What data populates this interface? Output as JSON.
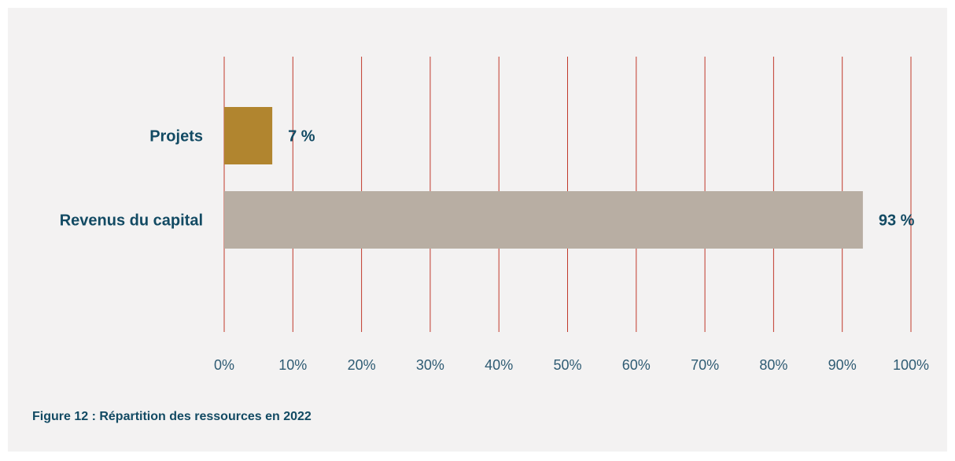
{
  "caption": "Figure 12 : Répartition des ressources en 2022",
  "chart_data": {
    "type": "bar",
    "orientation": "horizontal",
    "categories": [
      "Projets",
      "Revenus du capital"
    ],
    "values": [
      7,
      93
    ],
    "data_labels": [
      "7 %",
      "93 %"
    ],
    "bar_colors": [
      "#b1852f",
      "#b8aea3"
    ],
    "xlim": [
      0,
      100
    ],
    "x_ticks": [
      0,
      10,
      20,
      30,
      40,
      50,
      60,
      70,
      80,
      90,
      100
    ],
    "x_tick_labels": [
      "0%",
      "10%",
      "20%",
      "30%",
      "40%",
      "50%",
      "60%",
      "70%",
      "80%",
      "90%",
      "100%"
    ],
    "grid": "vertical",
    "grid_color": "#c0392b",
    "text_color": "#124a63",
    "background": "#f3f2f2",
    "title": "",
    "xlabel": "",
    "ylabel": ""
  }
}
